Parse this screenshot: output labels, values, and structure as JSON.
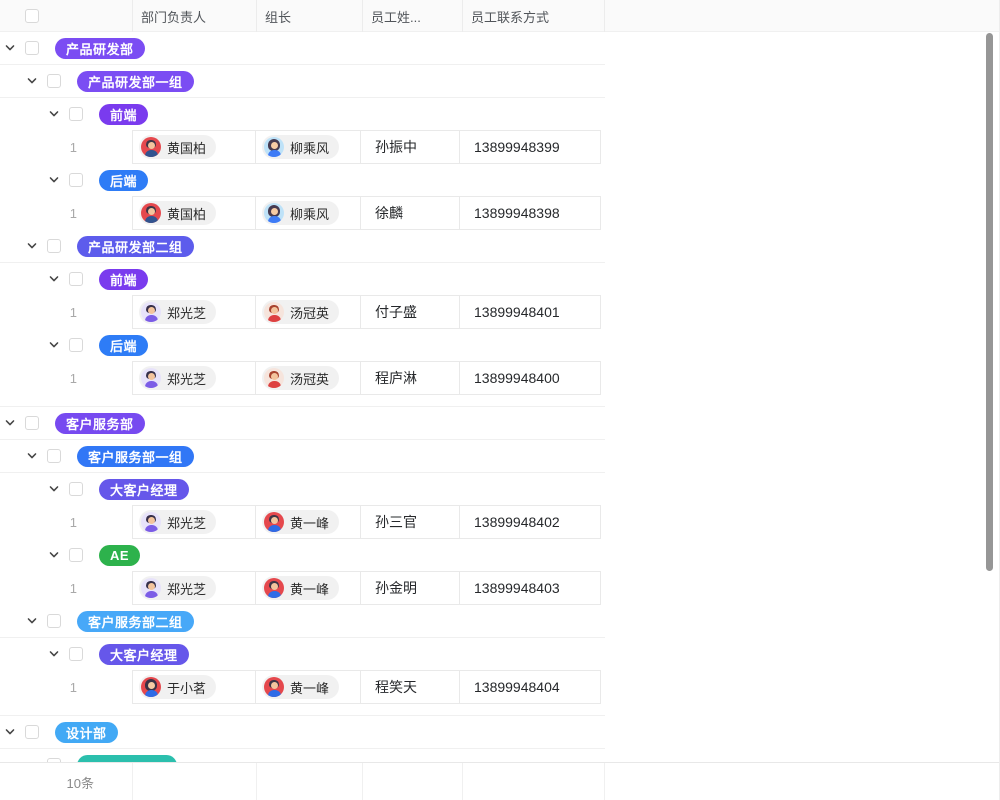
{
  "columns": [
    {
      "label": "部门负责人"
    },
    {
      "label": "组长"
    },
    {
      "label": "员工姓..."
    },
    {
      "label": "员工联系方式"
    }
  ],
  "footer": {
    "total": "10条"
  },
  "people": {
    "huang_guobai": {
      "name": "黄国柏",
      "bg": "#E5484D",
      "hair": "#3E3547",
      "skin": "#F3C49D",
      "shirt": "#31538F",
      "hair_style": "short"
    },
    "liu_chengfeng": {
      "name": "柳乘风",
      "bg": "#BEE2F8",
      "hair": "#463A50",
      "skin": "#F6CBA4",
      "shirt": "#3E7BF6",
      "hair_style": "long"
    },
    "zheng_guangzhi": {
      "name": "郑光芝",
      "bg": "#E7E2FA",
      "hair": "#37304A",
      "skin": "#F3C49D",
      "shirt": "#7B5CE6",
      "hair_style": "short"
    },
    "tang_guanying": {
      "name": "汤冠英",
      "bg": "#F6E4DC",
      "hair": "#A8432F",
      "skin": "#F3C49D",
      "shirt": "#DD4040",
      "hair_style": "short"
    },
    "huang_yifeng": {
      "name": "黄一峰",
      "bg": "#E5484D",
      "hair": "#3E3547",
      "skin": "#F3C49D",
      "shirt": "#2E6BE6",
      "hair_style": "short"
    },
    "yu_xiaoming": {
      "name": "于小茗",
      "bg": "#E5484D",
      "hair": "#3A3245",
      "skin": "#F6CBA4",
      "shirt": "#2E6BE6",
      "hair_style": "long"
    }
  },
  "rows": [
    {
      "type": "group",
      "level": 1,
      "tag": "产品研发部",
      "color": "#7B4DF3"
    },
    {
      "type": "group",
      "level": 2,
      "tag": "产品研发部一组",
      "color": "#7B4DF3"
    },
    {
      "type": "group",
      "level": 3,
      "tag": "前端",
      "color": "#7A3BEE"
    },
    {
      "type": "employee",
      "count": "1",
      "dept_head": "huang_guobai",
      "leader": "liu_chengfeng",
      "name": "孙振中",
      "phone": "13899948399"
    },
    {
      "type": "group",
      "level": 3,
      "tag": "后端",
      "color": "#2E7CF6"
    },
    {
      "type": "employee",
      "count": "1",
      "dept_head": "huang_guobai",
      "leader": "liu_chengfeng",
      "name": "徐麟",
      "phone": "13899948398"
    },
    {
      "type": "group",
      "level": 2,
      "tag": "产品研发部二组",
      "color": "#5D5CEC"
    },
    {
      "type": "group",
      "level": 3,
      "tag": "前端",
      "color": "#7A3BEE"
    },
    {
      "type": "employee",
      "count": "1",
      "dept_head": "zheng_guangzhi",
      "leader": "tang_guanying",
      "name": "付子盛",
      "phone": "13899948401"
    },
    {
      "type": "group",
      "level": 3,
      "tag": "后端",
      "color": "#2E7CF6"
    },
    {
      "type": "employee",
      "count": "1",
      "dept_head": "zheng_guangzhi",
      "leader": "tang_guanying",
      "name": "程庐淋",
      "phone": "13899948400"
    },
    {
      "type": "spacer"
    },
    {
      "type": "group",
      "level": 1,
      "tag": "客户服务部",
      "color": "#774AF0"
    },
    {
      "type": "group",
      "level": 2,
      "tag": "客户服务部一组",
      "color": "#3177F6"
    },
    {
      "type": "group",
      "level": 3,
      "tag": "大客户经理",
      "color": "#6657EA"
    },
    {
      "type": "employee",
      "count": "1",
      "dept_head": "zheng_guangzhi",
      "leader": "huang_yifeng",
      "name": "孙三官",
      "phone": "13899948402"
    },
    {
      "type": "group",
      "level": 3,
      "tag": "AE",
      "color": "#2DB24C"
    },
    {
      "type": "employee",
      "count": "1",
      "dept_head": "zheng_guangzhi",
      "leader": "huang_yifeng",
      "name": "孙金明",
      "phone": "13899948403"
    },
    {
      "type": "group",
      "level": 2,
      "tag": "客户服务部二组",
      "color": "#47A8F8"
    },
    {
      "type": "group",
      "level": 3,
      "tag": "大客户经理",
      "color": "#6657EA"
    },
    {
      "type": "employee",
      "count": "1",
      "dept_head": "yu_xiaoming",
      "leader": "huang_yifeng",
      "name": "程笑天",
      "phone": "13899948404"
    },
    {
      "type": "spacer"
    },
    {
      "type": "group",
      "level": 1,
      "tag": "设计部",
      "color": "#42A9F5"
    },
    {
      "type": "group",
      "level": 2,
      "tag": "",
      "color": "#2BBFAD"
    }
  ]
}
